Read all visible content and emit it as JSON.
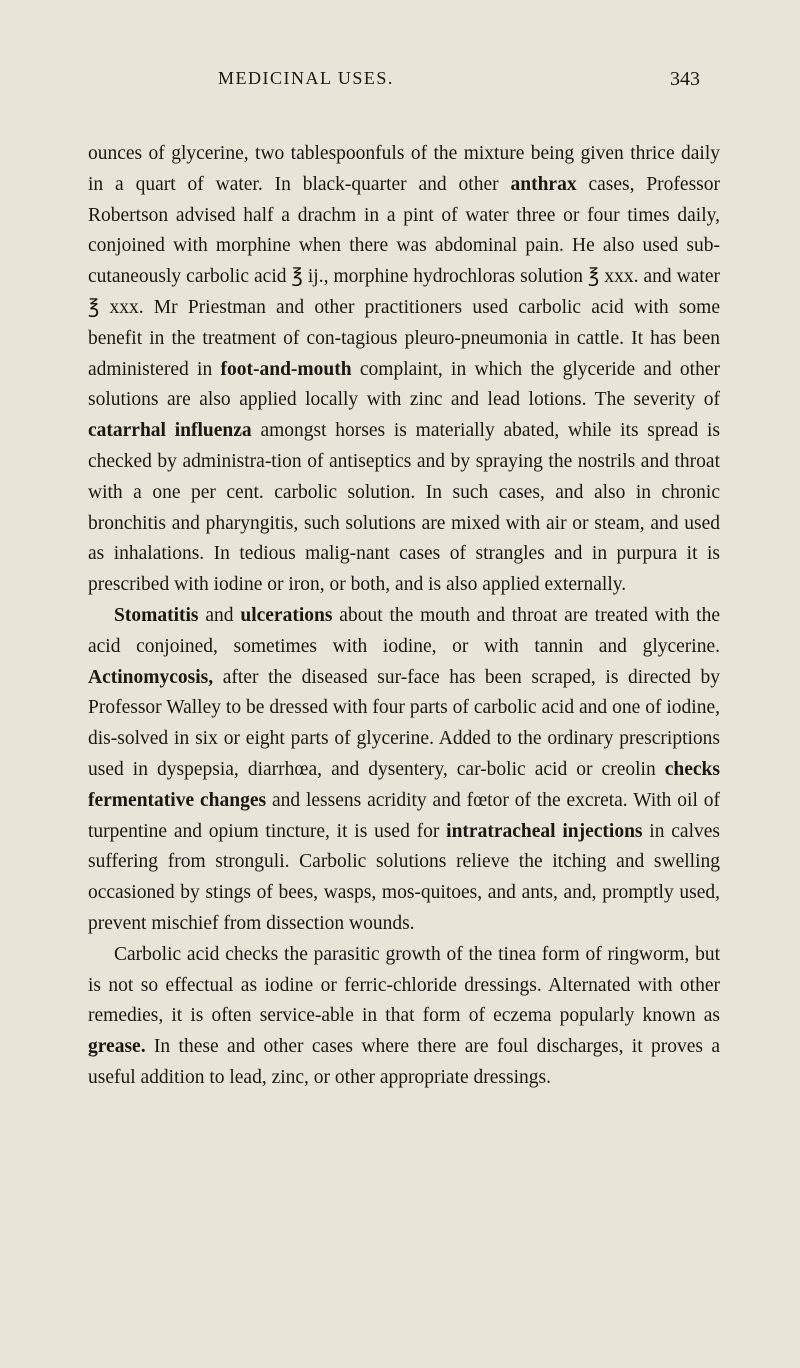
{
  "page": {
    "header_title": "MEDICINAL USES.",
    "page_number": "343",
    "background_color": "#e8e5d8",
    "text_color": "#1a1612",
    "font_size_body": 19.5,
    "font_size_header": 18,
    "line_height": 1.58
  },
  "paragraphs": {
    "p1_part1": "ounces of glycerine, two tablespoonfuls of the mixture being given thrice daily in a quart of water. In black-quarter and other ",
    "p1_bold1": "anthrax",
    "p1_part2": " cases, Professor Robertson advised half a drachm in a pint of water three or four times daily, conjoined with morphine when there was abdominal pain. He also used sub-cutaneously carbolic acid ℥ ij., morphine hydrochloras solution ℥ xxx. and water ℥ xxx. Mr Priestman and other practitioners used carbolic acid with some benefit in the treatment of con-tagious pleuro-pneumonia in cattle. It has been administered in ",
    "p1_bold2": "foot-and-mouth",
    "p1_part3": " complaint, in which the glyceride and other solutions are also applied locally with zinc and lead lotions. The severity of ",
    "p1_bold3": "catarrhal influenza",
    "p1_part4": " amongst horses is materially abated, while its spread is checked by administra-tion of antiseptics and by spraying the nostrils and throat with a one per cent. carbolic solution. In such cases, and also in chronic bronchitis and pharyngitis, such solutions are mixed with air or steam, and used as inhalations. In tedious malig-nant cases of strangles and in purpura it is prescribed with iodine or iron, or both, and is also applied externally.",
    "p2_bold1": "Stomatitis",
    "p2_part1": " and ",
    "p2_bold2": "ulcerations",
    "p2_part2": " about the mouth and throat are treated with the acid conjoined, sometimes with iodine, or with tannin and glycerine. ",
    "p2_bold3": "Actinomycosis,",
    "p2_part3": " after the diseased sur-face has been scraped, is directed by Professor Walley to be dressed with four parts of carbolic acid and one of iodine, dis-solved in six or eight parts of glycerine. Added to the ordinary prescriptions used in dyspepsia, diarrhœa, and dysentery, car-bolic acid or creolin ",
    "p2_bold4": "checks fermentative changes",
    "p2_part4": " and lessens acridity and fœtor of the excreta. With oil of turpentine and opium tincture, it is used for ",
    "p2_bold5": "intratracheal injections",
    "p2_part5": " in calves suffering from stronguli. Carbolic solutions relieve the itching and swelling occasioned by stings of bees, wasps, mos-quitoes, and ants, and, promptly used, prevent mischief from dissection wounds.",
    "p3_part1": "Carbolic acid checks the parasitic growth of the tinea form of ringworm, but is not so effectual as iodine or ferric-chloride dressings. Alternated with other remedies, it is often service-able in that form of eczema popularly known as ",
    "p3_bold1": "grease.",
    "p3_part2": " In these and other cases where there are foul discharges, it proves a useful addition to lead, zinc, or other appropriate dressings."
  }
}
